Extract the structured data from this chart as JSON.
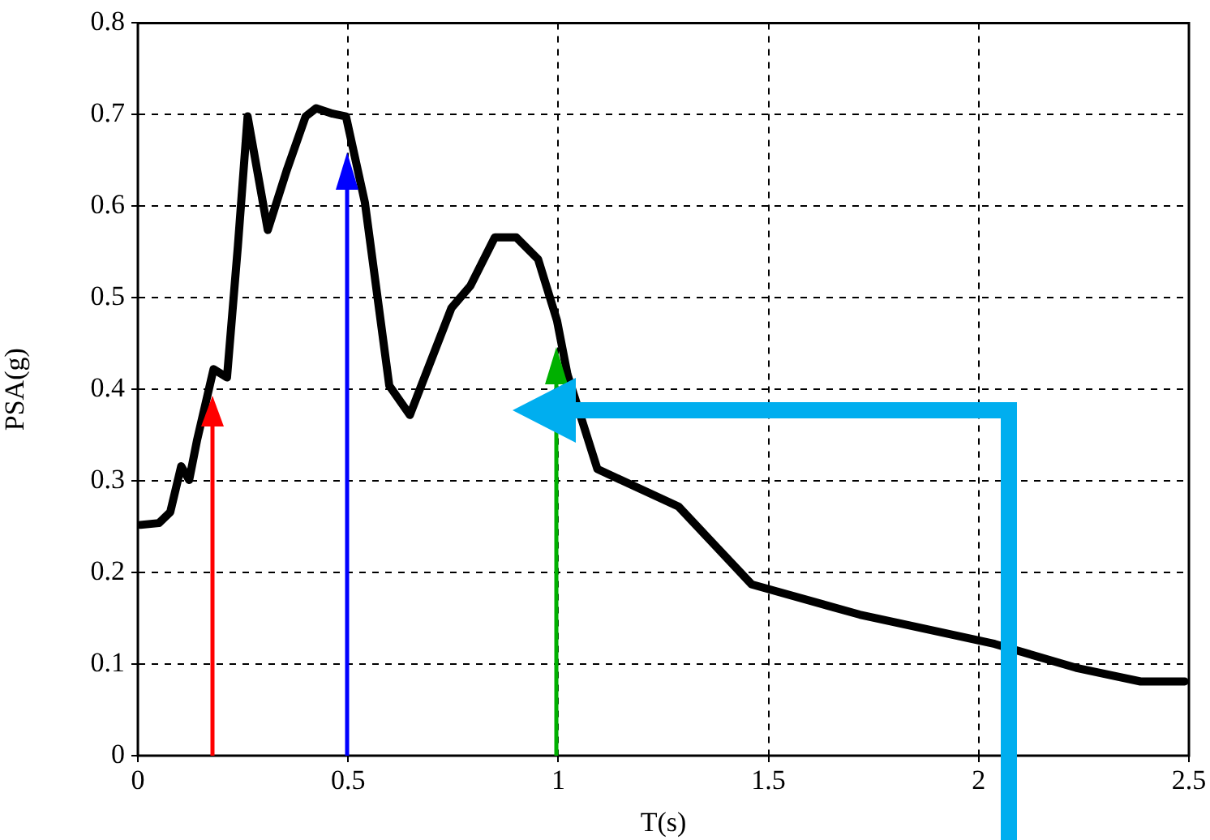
{
  "chart_data": {
    "type": "line",
    "xlabel": "T(s)",
    "ylabel": "PSA(g)",
    "xlim": [
      0,
      2.5
    ],
    "ylim": [
      0,
      0.8
    ],
    "xticks": [
      0,
      0.5,
      1,
      1.5,
      2,
      2.5
    ],
    "yticks": [
      0,
      0.1,
      0.2,
      0.3,
      0.4,
      0.5,
      0.6,
      0.7,
      0.8
    ],
    "grid": true,
    "legend": false,
    "line_style": "solid",
    "series": [
      {
        "color": "#000000",
        "x": [
          0.006,
          0.05,
          0.077,
          0.103,
          0.122,
          0.141,
          0.18,
          0.212,
          0.238,
          0.261,
          0.309,
          0.354,
          0.399,
          0.424,
          0.463,
          0.495,
          0.54,
          0.598,
          0.647,
          0.746,
          0.791,
          0.849,
          0.9,
          0.952,
          0.997,
          1.022,
          1.093,
          1.286,
          1.37,
          1.46,
          1.717,
          2.038,
          2.231,
          2.385,
          2.49
        ],
        "values": [
          0.252,
          0.254,
          0.266,
          0.316,
          0.301,
          0.345,
          0.422,
          0.413,
          0.557,
          0.698,
          0.574,
          0.639,
          0.698,
          0.707,
          0.701,
          0.698,
          0.604,
          0.404,
          0.372,
          0.489,
          0.513,
          0.566,
          0.566,
          0.542,
          0.475,
          0.416,
          0.313,
          0.272,
          0.231,
          0.187,
          0.154,
          0.122,
          0.096,
          0.081,
          0.081
        ]
      }
    ]
  }
}
